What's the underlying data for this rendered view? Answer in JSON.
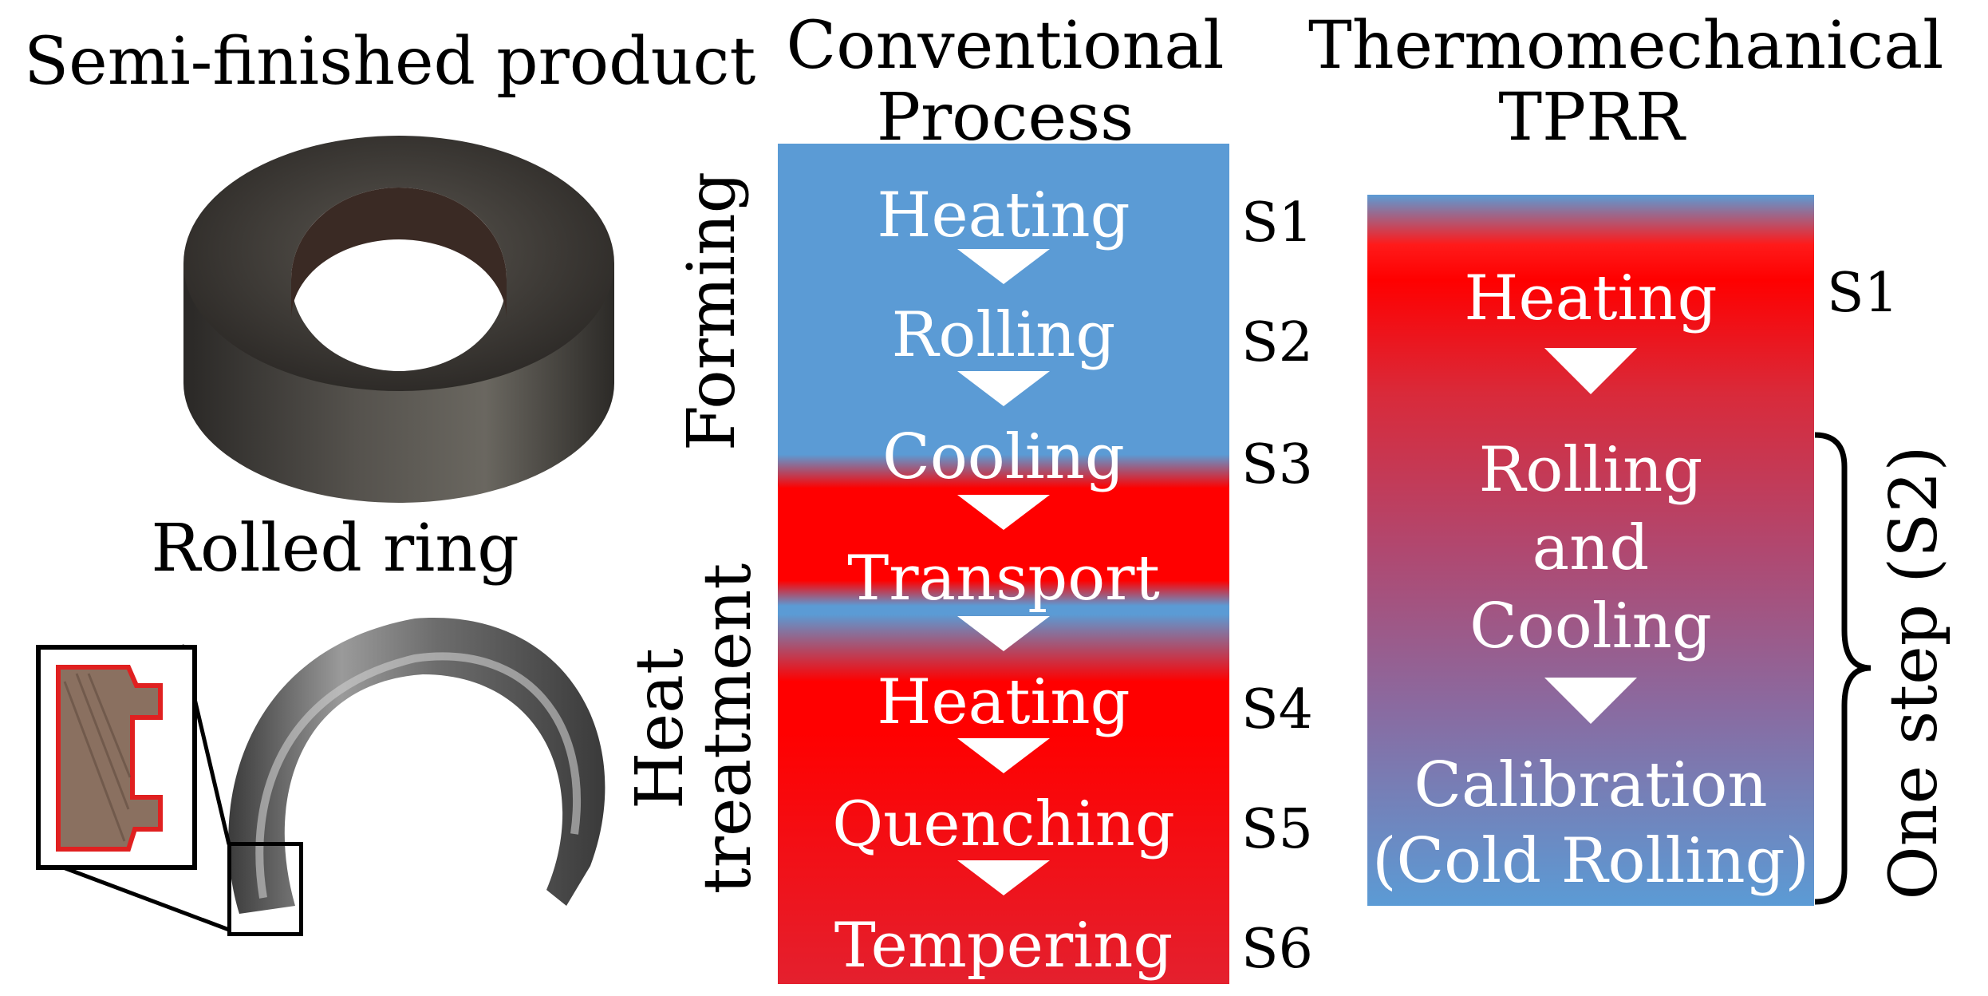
{
  "left": {
    "semi_finished_title": "Semi-finished product",
    "rolled_ring_title": "Rolled ring"
  },
  "conventional": {
    "header_line1": "Conventional",
    "header_line2": "Process",
    "steps": [
      "Heating",
      "Rolling",
      "Cooling",
      "Transport",
      "Heating",
      "Quenching",
      "Tempering"
    ],
    "step_labels": [
      "S1",
      "S2",
      "S3",
      "S4",
      "S5",
      "S6"
    ],
    "group_forming": "Forming",
    "group_heat_line1": "Heat",
    "group_heat_line2": "treatment"
  },
  "tprr": {
    "header_line1": "Thermomechanical",
    "header_line2": "TPRR",
    "steps": [
      "Heating",
      "Rolling",
      "and",
      "Cooling",
      "Calibration",
      "(Cold Rolling)"
    ],
    "step_label_s1": "S1",
    "brace_label": "One step (S2)"
  },
  "colors": {
    "blue": "#5b9bd5",
    "red": "#ff0000",
    "highlight_outline": "#e02020"
  }
}
